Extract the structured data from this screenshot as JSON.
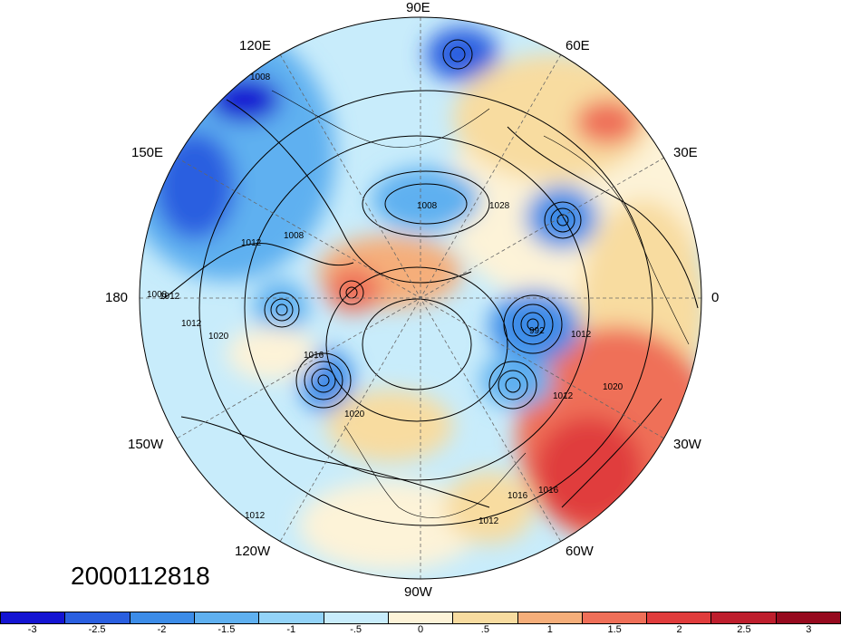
{
  "title": "2000112818",
  "longitude_labels": {
    "lon90e": "90E",
    "lon120e": "120E",
    "lon60e": "60E",
    "lon150e": "150E",
    "lon30e": "30E",
    "lon180": "180",
    "lon0": "0",
    "lon150w": "150W",
    "lon30w": "30W",
    "lon120w": "120W",
    "lon60w": "60W",
    "lon90w": "90W"
  },
  "contour_labels": [
    "1008",
    "1008",
    "1012",
    "1008",
    "1008",
    "1012",
    "1012",
    "1016",
    "1020",
    "1016",
    "1020",
    "1012",
    "1012",
    "1016",
    "1012",
    "1012",
    "1020",
    "992",
    "1028"
  ],
  "colorbar": {
    "colors": [
      "#1414d2",
      "#2a5fe0",
      "#3c8ce8",
      "#5fb0f0",
      "#93d3f8",
      "#c8ecfb",
      "#fdf3d8",
      "#f8dca0",
      "#f5ae7a",
      "#ef6f58",
      "#e03c3c",
      "#be1e2d",
      "#960a1e"
    ],
    "tick_labels": [
      "-3",
      "-2.5",
      "-2",
      "-1.5",
      "-1",
      "-.5",
      "0",
      ".5",
      "1",
      "1.5",
      "2",
      "2.5",
      "3"
    ]
  }
}
